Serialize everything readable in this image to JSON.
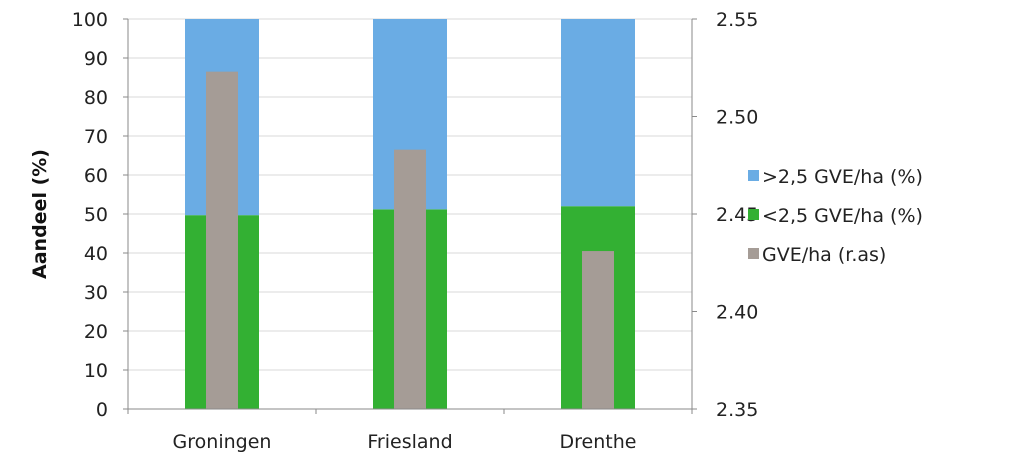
{
  "chart_data": {
    "type": "bar",
    "categories": [
      "Groningen",
      "Friesland",
      "Drenthe"
    ],
    "stacked_series": [
      {
        "name": "<2,5 GVE/ha (%)",
        "color": "#33b033",
        "values": [
          49.7,
          51.2,
          52.0
        ]
      },
      {
        "name": ">2,5 GVE/ha (%)",
        "color": "#6aace4",
        "values": [
          50.3,
          48.8,
          48.0
        ]
      }
    ],
    "secondary_series": {
      "name": "GVE/ha (r.as)",
      "color": "#a59c96",
      "values": [
        2.523,
        2.483,
        2.431
      ]
    },
    "ylabel": "Aandeel (%)",
    "ylim": [
      0,
      100
    ],
    "yticks": [
      0,
      10,
      20,
      30,
      40,
      50,
      60,
      70,
      80,
      90,
      100
    ],
    "y2lim": [
      2.35,
      2.55
    ],
    "y2ticks": [
      "2.35",
      "2.40",
      "2.45",
      "2.50",
      "2.55"
    ],
    "grid": true,
    "legend": {
      "position": "right",
      "items": [
        {
          "label": ">2,5 GVE/ha (%)",
          "color": "#6aace4"
        },
        {
          "label": "<2,5 GVE/ha (%)",
          "color": "#33b033"
        },
        {
          "label": "GVE/ha (r.as)",
          "color": "#a59c96"
        }
      ]
    }
  }
}
